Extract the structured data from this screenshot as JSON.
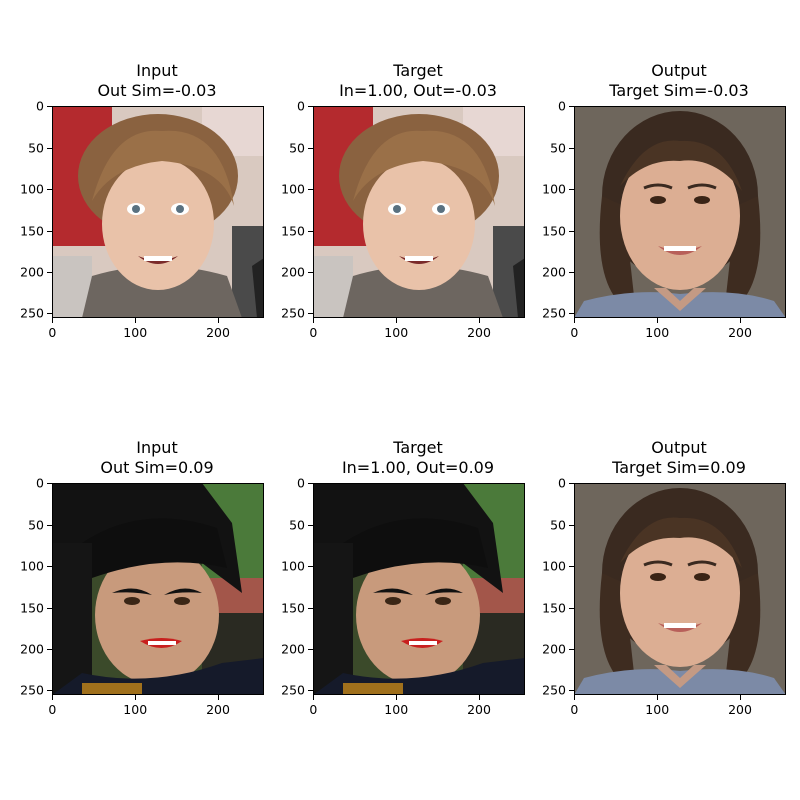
{
  "panels": [
    {
      "title_line1": "Input",
      "title_line2": "Out Sim=-0.03",
      "image": "toddler-curly-hair"
    },
    {
      "title_line1": "Target",
      "title_line2": "In=1.00, Out=-0.03",
      "image": "toddler-curly-hair"
    },
    {
      "title_line1": "Output",
      "title_line2": "Target Sim=-0.03",
      "image": "woman-brown-hair-smiling"
    },
    {
      "title_line1": "Input",
      "title_line2": "Out Sim=0.09",
      "image": "woman-bangs-red-lips"
    },
    {
      "title_line1": "Target",
      "title_line2": "In=1.00, Out=0.09",
      "image": "woman-bangs-red-lips"
    },
    {
      "title_line1": "Output",
      "title_line2": "Target Sim=0.09",
      "image": "woman-brown-hair-smiling"
    }
  ],
  "axes": {
    "x_ticks": [
      "0",
      "100",
      "200"
    ],
    "y_ticks": [
      "0",
      "50",
      "100",
      "150",
      "200",
      "250"
    ],
    "x_values": [
      0,
      100,
      200
    ],
    "y_values": [
      0,
      50,
      100,
      150,
      200,
      250
    ],
    "range": [
      0,
      256
    ]
  }
}
